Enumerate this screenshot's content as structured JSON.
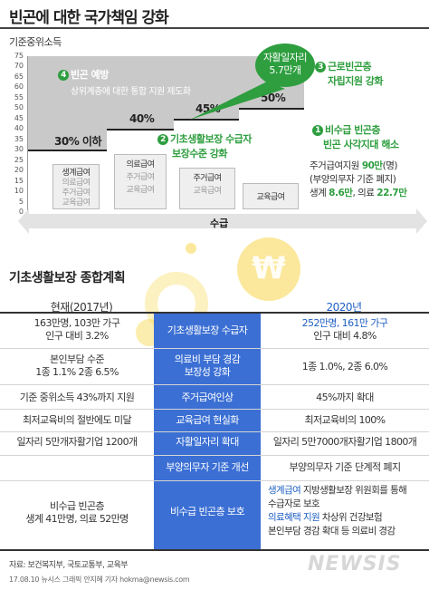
{
  "title": "빈곤에 대한 국가책임 강화",
  "chart": {
    "unit_label": "기준중위소득",
    "y_ticks": [
      "75",
      "70",
      "65",
      "60",
      "55",
      "50",
      "45",
      "40",
      "35",
      "30",
      "25",
      "20",
      "15",
      "10",
      "5",
      "0"
    ],
    "ylim": [
      0,
      75
    ],
    "x_label": "수급",
    "steps": [
      {
        "pct_label": "30% 이하",
        "level": 30,
        "items": [
          {
            "text": "생계급여",
            "active": true
          },
          {
            "text": "의료급여",
            "active": false
          },
          {
            "text": "주거급여",
            "active": false
          },
          {
            "text": "교육급여",
            "active": false
          }
        ]
      },
      {
        "pct_label": "40%",
        "level": 40,
        "items": [
          {
            "text": "의료급여",
            "active": true
          },
          {
            "text": "주거급여",
            "active": false
          },
          {
            "text": "교육급여",
            "active": false
          }
        ]
      },
      {
        "pct_label": "45%",
        "level": 45,
        "items": [
          {
            "text": "주거급여",
            "active": true
          },
          {
            "text": "교육급여",
            "active": false
          }
        ]
      },
      {
        "pct_label": "50%",
        "level": 50,
        "items": [
          {
            "text": "교육급여",
            "active": true
          }
        ]
      }
    ],
    "note4": {
      "num": "4",
      "title": "빈곤 예방",
      "sub": "상위계층에 대한 통합 지원 제도화"
    },
    "note2": {
      "num": "2",
      "line1": "기초생활보장 수급자",
      "line2": "보장수준 강화"
    },
    "note3": {
      "num": "3",
      "line1": "근로빈곤층",
      "line2": "자립지원 강화"
    },
    "bubble": {
      "line1": "자활일자리",
      "line2": "5.7만개"
    },
    "note1": {
      "num": "1",
      "line1": "비수급 빈곤층",
      "line2": "빈곤 사각지대 해소"
    },
    "right_info": {
      "l1a": "주거급여지원 ",
      "l1b": "90만",
      "l1c": "(명)",
      "l2": "(부양의무자 기준 폐지)",
      "l3a": "생계 ",
      "l3b": "8.6만",
      "l3c": ", 의료 ",
      "l3d": "22.7만"
    },
    "colors": {
      "green": "#2e9e3f",
      "gray_zone": "#c9c9c9",
      "blue": "#3b6fd4"
    }
  },
  "plan": {
    "title": "기초생활보장 종합계획",
    "head_left": "현재(2017년)",
    "head_right": "2020년",
    "rows": [
      {
        "left": [
          "163만명, 103만 가구",
          "인구 대비 3.2%"
        ],
        "mid": [
          "기초생활보장 수급자"
        ],
        "right_blue": [
          "252만명, 161만 가구"
        ],
        "right_dark": [
          "인구 대비 4.8%"
        ]
      },
      {
        "left": [
          "본인부담 수준",
          "1종 1.1% 2종 6.5%"
        ],
        "mid": [
          "의료비 부담 경감",
          "보장성 강화"
        ],
        "right_blue": [
          "1종 1.0%, 2종 6.0%"
        ],
        "right_dark": []
      },
      {
        "left": [
          "기준 중위소득 43%까지 지원"
        ],
        "mid": [
          "주거급여인상"
        ],
        "right_blue": [
          "45%까지 확대"
        ],
        "right_dark": []
      },
      {
        "left": [
          "최저교육비의 절반에도 미달"
        ],
        "mid": [
          "교육급여 현실화"
        ],
        "right_blue": [
          "최저교육비의 100%"
        ],
        "right_dark": []
      },
      {
        "left": [
          "일자리 5만개자활기업 1200개"
        ],
        "mid": [
          "자활일자리 확대"
        ],
        "right_blue": [
          "일자리 5만7000개자활기업 1800개"
        ],
        "right_dark": []
      },
      {
        "left": [],
        "mid": [
          "부양의무자 기준 개선"
        ],
        "right_blue": [
          "부양의무자 기준 단계적 폐지"
        ],
        "right_dark": []
      },
      {
        "left": [
          "비수급 빈곤층",
          "생계 41만명, 의료 52만명"
        ],
        "mid": [
          "비수급 빈곤층 보호"
        ],
        "right_blue": [],
        "right_dark": [],
        "right_mixed": [
          {
            "parts": [
              {
                "t": "생계급여",
                "c": "blue"
              },
              {
                "t": " 지방생활보장 위원회를 통해",
                "c": "dark"
              }
            ]
          },
          {
            "parts": [
              {
                "t": "수급자로 보호",
                "c": "dark"
              }
            ]
          },
          {
            "parts": [
              {
                "t": "의료혜택 지원",
                "c": "blue"
              },
              {
                "t": " 차상위 건강보험",
                "c": "dark"
              }
            ]
          },
          {
            "parts": [
              {
                "t": "본인부담 경감 확대 등 의료비 경감",
                "c": "dark"
              }
            ]
          }
        ]
      }
    ]
  },
  "footer": {
    "source": "자료: 보건복지부, 국토교통부, 교육부",
    "credit": "17.08.10 뉴시스 그래픽 안지혜 기자 hokma@newsis.com",
    "watermark": "NEWSIS"
  }
}
